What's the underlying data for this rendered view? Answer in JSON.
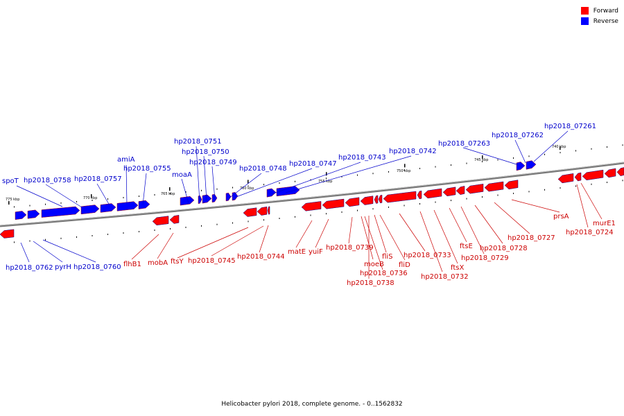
{
  "legend": {
    "forward_label": "Forward",
    "reverse_label": "Reverse",
    "forward_color": "#ff0000",
    "reverse_color": "#0000ff"
  },
  "caption": "Helicobacter pylori 2018, complete genome. - 0..1562832",
  "scale_labels": [
    "775 kbp",
    "770 kbp",
    "765 kbp",
    "760 kbp",
    "755 kbp",
    "750 kbp",
    "745 kbp",
    "740 kbp"
  ],
  "reverse_gene_labels_top": [
    "spoT",
    "hp2018_0758",
    "hp2018_0757",
    "amiA",
    "hp2018_0755",
    "moaA",
    "hp2018_0751",
    "hp2018_0750",
    "hp2018_0749",
    "hp2018_0748",
    "hp2018_0747",
    "hp2018_0743",
    "hp2018_0742",
    "hp2018_07263",
    "hp2018_07262",
    "hp2018_07261"
  ],
  "reverse_gene_labels_bottom": [
    "hp2018_0762",
    "pyrH",
    "hp2018_0760"
  ],
  "forward_gene_labels": [
    "flhB1",
    "mobA",
    "ftsY",
    "hp2018_0745",
    "hp2018_0744",
    "matE",
    "yuiF",
    "hp2018_0739",
    "moeB",
    "hp2018_0736",
    "hp2018_0738",
    "fliS",
    "fliD",
    "hp2018_0733",
    "hp2018_0732",
    "ftsX",
    "ftsE",
    "hp2018_0729",
    "hp2018_0728",
    "hp2018_0727",
    "prsA",
    "hp2018_0724",
    "murE1"
  ]
}
